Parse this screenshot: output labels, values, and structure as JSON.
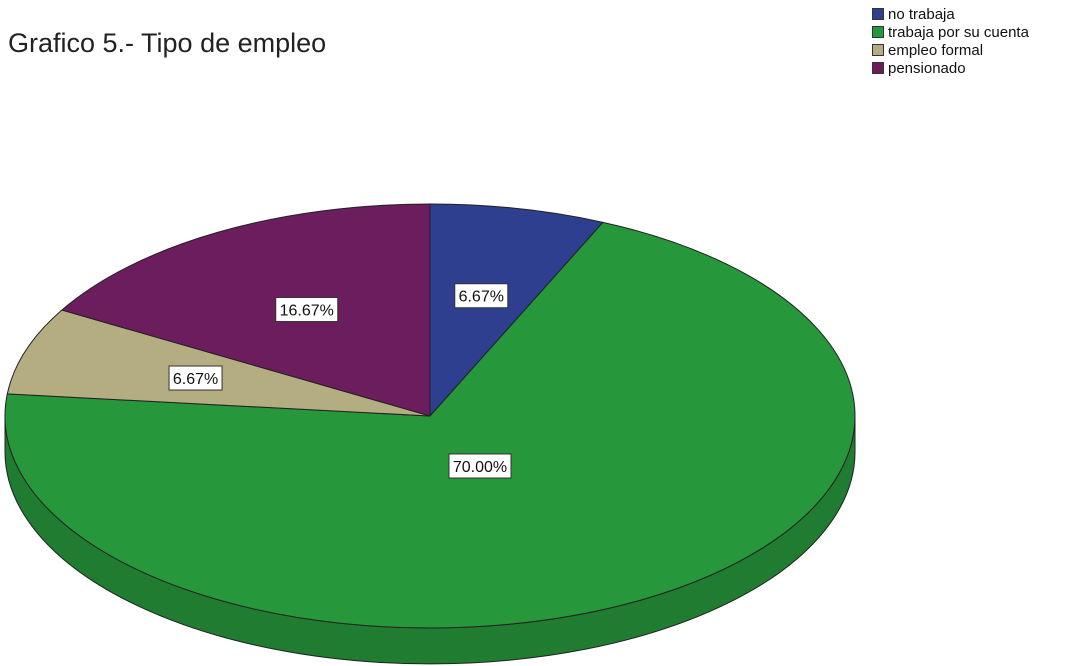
{
  "chart_data": {
    "type": "pie",
    "title": "Grafico 5.- Tipo de empleo",
    "legend_position": "top-right",
    "start_angle_deg": -90,
    "direction": "clockwise",
    "style": "3d",
    "slices": [
      {
        "label": "no trabaja",
        "value": 6.67,
        "data_label": "6.67%",
        "color": "#2e3f8f"
      },
      {
        "label": "trabaja por su cuenta",
        "value": 70.0,
        "data_label": "70.00%",
        "color": "#26973a"
      },
      {
        "label": "empleo formal",
        "value": 6.67,
        "data_label": "6.67%",
        "color": "#b5ad82"
      },
      {
        "label": "pensionado",
        "value": 16.67,
        "data_label": "16.67%",
        "color": "#6b1d5e"
      }
    ]
  }
}
